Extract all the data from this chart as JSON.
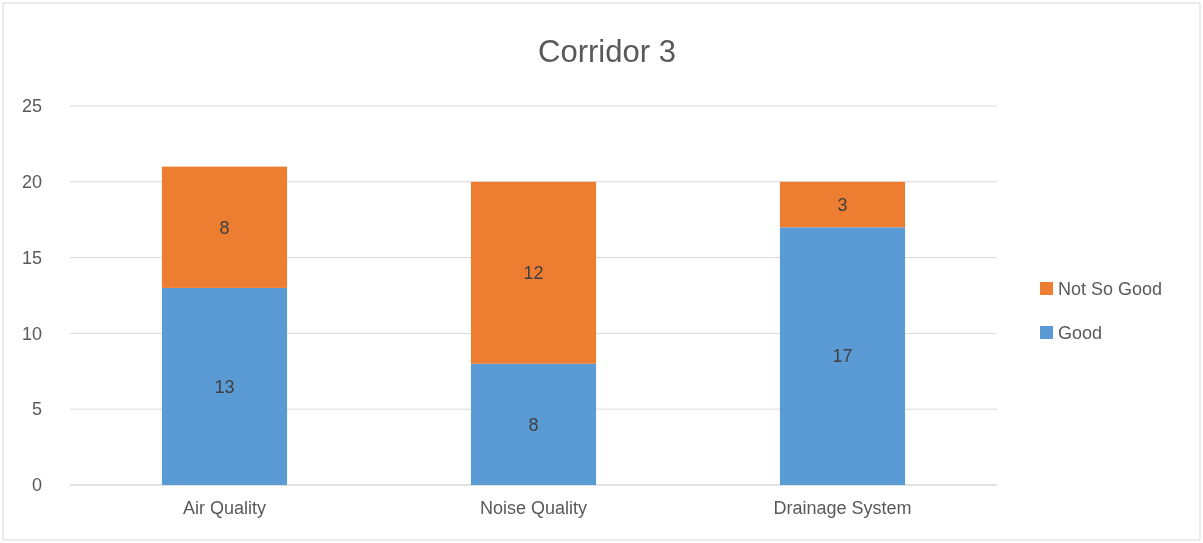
{
  "chart_data": {
    "type": "bar",
    "title": "Corridor 3",
    "categories": [
      "Air Quality",
      "Noise Quality",
      "Drainage System"
    ],
    "series": [
      {
        "name": "Good",
        "color": "#5b9bd5",
        "values": [
          13,
          8,
          17
        ]
      },
      {
        "name": "Not So Good",
        "color": "#ed7d31",
        "values": [
          8,
          12,
          3
        ]
      }
    ],
    "stacked": true,
    "data_labels": true,
    "ylim": [
      0,
      25
    ],
    "yticks": [
      0,
      5,
      10,
      15,
      20,
      25
    ],
    "grid": "y",
    "legend": "right"
  }
}
